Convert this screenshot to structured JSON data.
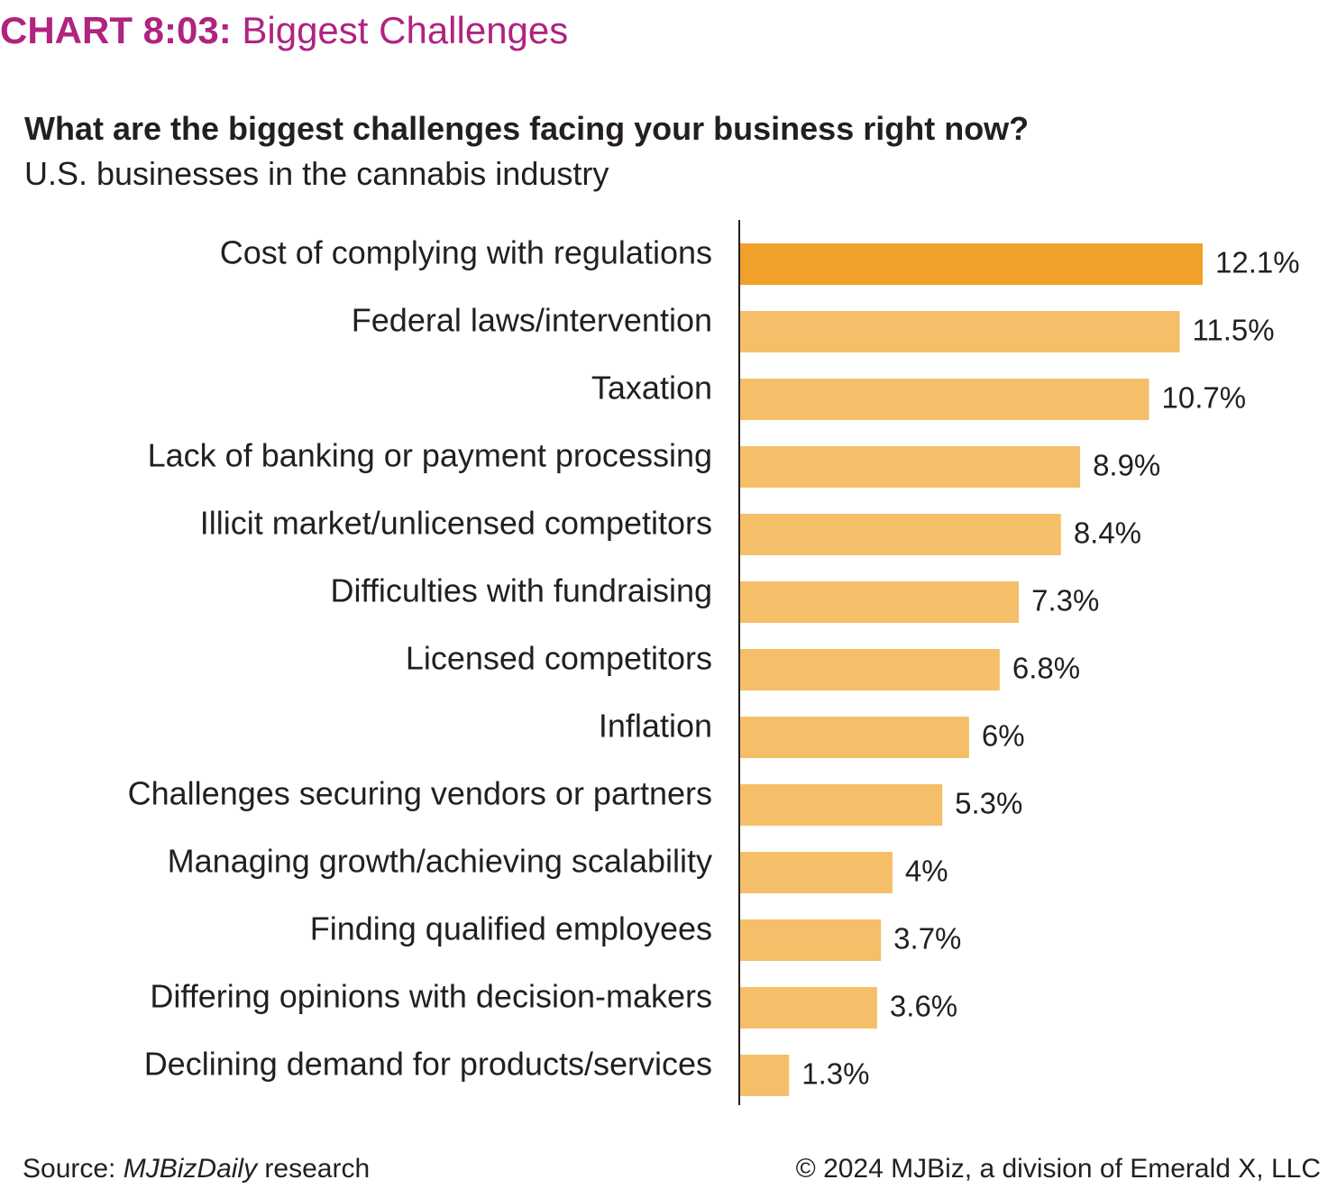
{
  "header": {
    "chart_number": "CHART 8:03:",
    "chart_name": "Biggest Challenges"
  },
  "chart_data": {
    "type": "bar",
    "orientation": "horizontal",
    "title": "What are the biggest challenges facing your business right now?",
    "subtitle": "U.S. businesses in the cannabis industry",
    "categories": [
      "Cost of complying with regulations",
      "Federal laws/intervention",
      "Taxation",
      "Lack of banking or payment processing",
      "Illicit market/unlicensed competitors",
      "Difficulties with fundraising",
      "Licensed competitors",
      "Inflation",
      "Challenges securing vendors or partners",
      "Managing growth/achieving scalability",
      "Finding qualified employees",
      "Differing opinions with decision-makers",
      "Declining demand for products/services"
    ],
    "values": [
      12.1,
      11.5,
      10.7,
      8.9,
      8.4,
      7.3,
      6.8,
      6,
      5.3,
      4,
      3.7,
      3.6,
      1.3
    ],
    "value_labels": [
      "12.1%",
      "11.5%",
      "10.7%",
      "8.9%",
      "8.4%",
      "7.3%",
      "6.8%",
      "6%",
      "5.3%",
      "4%",
      "3.7%",
      "3.6%",
      "1.3%"
    ],
    "xlabel": "",
    "ylabel": "",
    "xlim": [
      0,
      12.1
    ],
    "grid": false,
    "legend": "none",
    "highlight_index": 0,
    "colors": {
      "highlight": "#f0a129",
      "bar": "#f5bf69",
      "axis": "#231f20",
      "text": "#231f20"
    }
  },
  "footer": {
    "source_prefix": "Source: ",
    "source_name": "MJBizDaily",
    "source_suffix": " research",
    "copyright": "© 2024 MJBiz, a division of Emerald X, LLC"
  }
}
